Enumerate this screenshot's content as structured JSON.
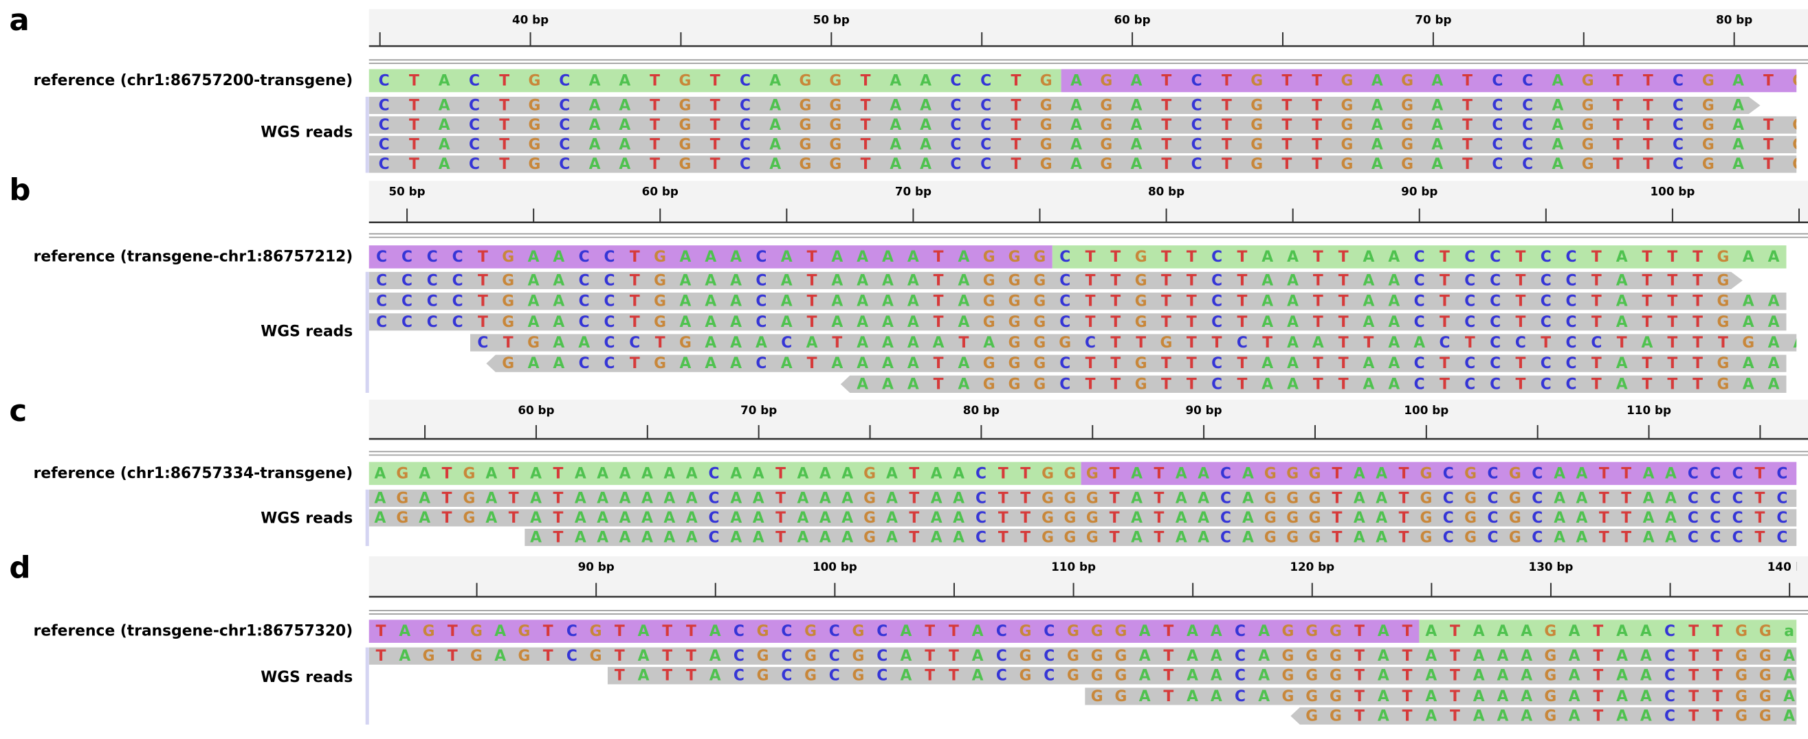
{
  "panels": [
    {
      "label": "a",
      "ruler": [
        "40 bp",
        "50 bp",
        "60 bp",
        "70 bp",
        "80 bp"
      ],
      "reference": {
        "label": "reference (chr1:86757200-transgene)",
        "segments": [
          {
            "sequence": "CTACTGCAATGTCAGGTAACCTG",
            "color": "#b7e6a9"
          },
          {
            "sequence": "AGATCTGTTGAGATCCAGTTCGATG",
            "color": "#c98ee6"
          }
        ]
      },
      "reads_label": "WGS reads",
      "reads": [
        "CTACTGCAATGTCAGGTAACCTGAGATCTGTTGAGATCCAGTTCGA",
        "CTACTGCAATGTCAGGTAACCTGAGATCTGTTGAGATCCAGTTCGATG",
        "CTACTGCAATGTCAGGTAACCTGAGATCTGTTGAGATCCAGTTCGATG",
        "CTACTGCAATGTCAGGTAACCTGAGATCTGTTGAGATCCAGTTCGATG"
      ]
    },
    {
      "label": "b",
      "ruler": [
        "50 bp",
        "60 bp",
        "70 bp",
        "80 bp",
        "90 bp",
        "100 bp"
      ],
      "reference": {
        "label": "reference (transgene-chr1:86757212)",
        "segments": [
          {
            "sequence": "CCCCTGAACCTGAAACATAAAATAGGG",
            "color": "#c98ee6"
          },
          {
            "sequence": "CTTGTTCTAATTAACTCCTCCTATTTGAA",
            "color": "#b7e6a9"
          }
        ]
      },
      "reads_label": "WGS reads",
      "reads": [
        "CCCCTGAACCTGAAACATAAAATAGGGCTTGTTCTAATTAACTCCTCCTATTTG",
        "CCCCTGAACCTGAAACATAAAATAGGGCTTGTTCTAATTAACTCCTCCTATTTGAA",
        "CCCCTGAACCTGAAACATAAAATAGGGCTTGTTCTAATTAACTCCTCCTATTTGAA",
        "CTGAACCTGAAACATAAAATAGGGCTTGTTCTAATTAACTCCTCCTATTTGAA",
        "GAACCTGAAACATAAAATAGGGCTTGTTCTAATTAACTCCTCCTATTTGAA",
        "AAATAGGGCTTGTTCTAATTAACTCCTCCTATTTGAA"
      ]
    },
    {
      "label": "c",
      "ruler": [
        "60 bp",
        "70 bp",
        "80 bp",
        "90 bp",
        "100 bp",
        "110 bp"
      ],
      "reference": {
        "label": "reference (chr1:86757334-transgene)",
        "segments": [
          {
            "sequence": "AGATGATATAAAAAACAATAAAGATAACTTGG",
            "color": "#b7e6a9"
          },
          {
            "sequence": "GTATAACAGGGTAATGCGCGCAATTAACCCTCA",
            "color": "#c98ee6"
          }
        ]
      },
      "reads_label": "WGS reads",
      "reads": [
        "AGATGATATAAAAAACAATAAAGATAACTTGGGTATAACAGGGTAATGCGCGCAATTAACCCTCA",
        "AGATGATATAAAAAACAATAAAGATAACTTGGGTATAACAGGGTAATGCGCGCAATTAACCCTCA",
        "ATAAAAAACAATAAAGATAACTTGGGTATAACAGGGTAATGCGCGCAATTAACCCTCA"
      ]
    },
    {
      "label": "d",
      "ruler": [
        "90 bp",
        "100 bp",
        "110 bp",
        "120 bp",
        "130 bp",
        "140 bp"
      ],
      "reference": {
        "label": "reference (transgene-chr1:86757320)",
        "segments": [
          {
            "sequence": "TAGTGAGTCGTATTACGCGCGCATTACGCGGGATAACAGGGTAT",
            "color": "#c98ee6"
          },
          {
            "sequence": "ATAAAGATAACTTGGa",
            "color": "#b7e6a9"
          }
        ]
      },
      "reads_label": "WGS reads",
      "reads": [
        "TAGTGAGTCGTATTACGCGCGCATTACGCGGGATAACAGGGTATATAAAGATAACTTGGA",
        "TATTACGCGCGCATTACGCGGGATAACAGGGTATATAAAGATAACTTGGA",
        "GGATAACAGGGTATATAAAGATAACTTGGA",
        "GGTATATAAAGATAACTTGGA"
      ]
    }
  ]
}
